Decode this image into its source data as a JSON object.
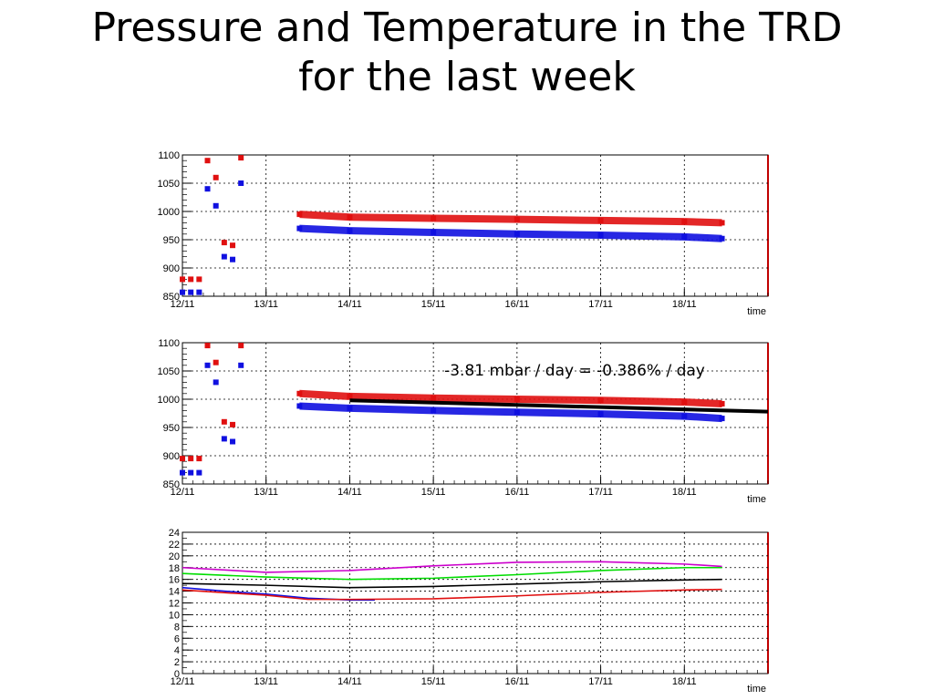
{
  "title_lines": [
    "Pressure and Temperature in the TRD",
    "for the last week"
  ],
  "colors": {
    "frame": "#000000",
    "frame_right": "#c00000",
    "red": "#e01010",
    "blue": "#1010e0",
    "green": "#00dd00",
    "magenta": "#cc00cc",
    "black": "#000000"
  },
  "chart_data": [
    {
      "type": "scatter",
      "title": "",
      "xlabel": "time",
      "ylabel": "",
      "x_tick_labels": [
        "12/11",
        "13/11",
        "14/11",
        "15/11",
        "16/11",
        "17/11",
        "18/11"
      ],
      "xlim": [
        12.0,
        19.0
      ],
      "ylim": [
        850,
        1100
      ],
      "y_ticks": [
        850,
        900,
        950,
        1000,
        1050,
        1100
      ],
      "grid": true,
      "annotation": "",
      "fit": null,
      "series": [
        {
          "color": "red",
          "x": [
            12.0,
            12.1,
            12.2,
            12.3,
            12.4,
            12.5,
            12.6,
            12.7,
            13.4,
            14.0,
            15.0,
            16.0,
            17.0,
            18.0,
            18.45
          ],
          "y": [
            880,
            880,
            880,
            1090,
            1060,
            945,
            940,
            1095,
            995,
            990,
            988,
            986,
            984,
            982,
            980
          ]
        },
        {
          "color": "blue",
          "x": [
            12.0,
            12.1,
            12.2,
            12.3,
            12.4,
            12.5,
            12.6,
            12.7,
            13.4,
            14.0,
            15.0,
            16.0,
            17.0,
            18.0,
            18.45
          ],
          "y": [
            857,
            857,
            857,
            1040,
            1010,
            920,
            915,
            1050,
            970,
            966,
            963,
            960,
            958,
            955,
            952
          ]
        }
      ]
    },
    {
      "type": "scatter",
      "title": "",
      "xlabel": "time",
      "ylabel": "",
      "x_tick_labels": [
        "12/11",
        "13/11",
        "14/11",
        "15/11",
        "16/11",
        "17/11",
        "18/11"
      ],
      "xlim": [
        12.0,
        19.0
      ],
      "ylim": [
        850,
        1100
      ],
      "y_ticks": [
        850,
        900,
        950,
        1000,
        1050,
        1100
      ],
      "grid": true,
      "annotation": "-3.81 mbar / day = -0.386% / day",
      "fit": {
        "x": [
          14.0,
          19.0
        ],
        "y": [
          998,
          978
        ]
      },
      "series": [
        {
          "color": "red",
          "x": [
            12.0,
            12.1,
            12.2,
            12.3,
            12.4,
            12.5,
            12.6,
            12.7,
            13.4,
            14.0,
            15.0,
            16.0,
            17.0,
            18.0,
            18.45
          ],
          "y": [
            895,
            895,
            895,
            1095,
            1065,
            960,
            955,
            1095,
            1010,
            1005,
            1002,
            1000,
            998,
            995,
            992
          ]
        },
        {
          "color": "blue",
          "x": [
            12.0,
            12.1,
            12.2,
            12.3,
            12.4,
            12.5,
            12.6,
            12.7,
            13.4,
            14.0,
            15.0,
            16.0,
            17.0,
            18.0,
            18.45
          ],
          "y": [
            870,
            870,
            870,
            1060,
            1030,
            930,
            925,
            1060,
            988,
            984,
            980,
            977,
            974,
            970,
            966
          ]
        }
      ]
    },
    {
      "type": "line",
      "title": "",
      "xlabel": "time",
      "ylabel": "",
      "x_tick_labels": [
        "12/11",
        "13/11",
        "14/11",
        "15/11",
        "16/11",
        "17/11",
        "18/11"
      ],
      "xlim": [
        12.0,
        19.0
      ],
      "ylim": [
        0,
        24
      ],
      "y_ticks": [
        0,
        2,
        4,
        6,
        8,
        10,
        12,
        14,
        16,
        18,
        20,
        22,
        24
      ],
      "grid": true,
      "annotation": "",
      "fit": null,
      "series": [
        {
          "color": "magenta",
          "x": [
            12.0,
            13.0,
            14.0,
            15.0,
            16.0,
            17.0,
            18.0,
            18.45
          ],
          "y": [
            18.0,
            17.2,
            17.5,
            18.3,
            18.9,
            19.0,
            18.6,
            18.2
          ]
        },
        {
          "color": "green",
          "x": [
            12.0,
            13.0,
            14.0,
            15.0,
            16.0,
            17.0,
            18.0,
            18.45
          ],
          "y": [
            17.0,
            16.4,
            16.0,
            16.2,
            16.8,
            17.5,
            18.0,
            18.0
          ]
        },
        {
          "color": "black",
          "x": [
            12.0,
            13.0,
            14.0,
            15.0,
            16.0,
            17.0,
            18.0,
            18.45
          ],
          "y": [
            15.3,
            15.0,
            14.6,
            14.8,
            15.2,
            15.6,
            15.9,
            16.0
          ]
        },
        {
          "color": "blue",
          "x": [
            12.0,
            12.5,
            13.0,
            13.5,
            14.0,
            14.3
          ],
          "y": [
            14.6,
            14.0,
            13.5,
            12.8,
            12.5,
            12.5
          ]
        },
        {
          "color": "red",
          "x": [
            12.0,
            13.0,
            13.5,
            14.0,
            15.0,
            16.0,
            17.0,
            18.0,
            18.45
          ],
          "y": [
            14.2,
            13.3,
            12.6,
            12.6,
            12.7,
            13.2,
            13.8,
            14.2,
            14.3
          ]
        }
      ]
    }
  ]
}
